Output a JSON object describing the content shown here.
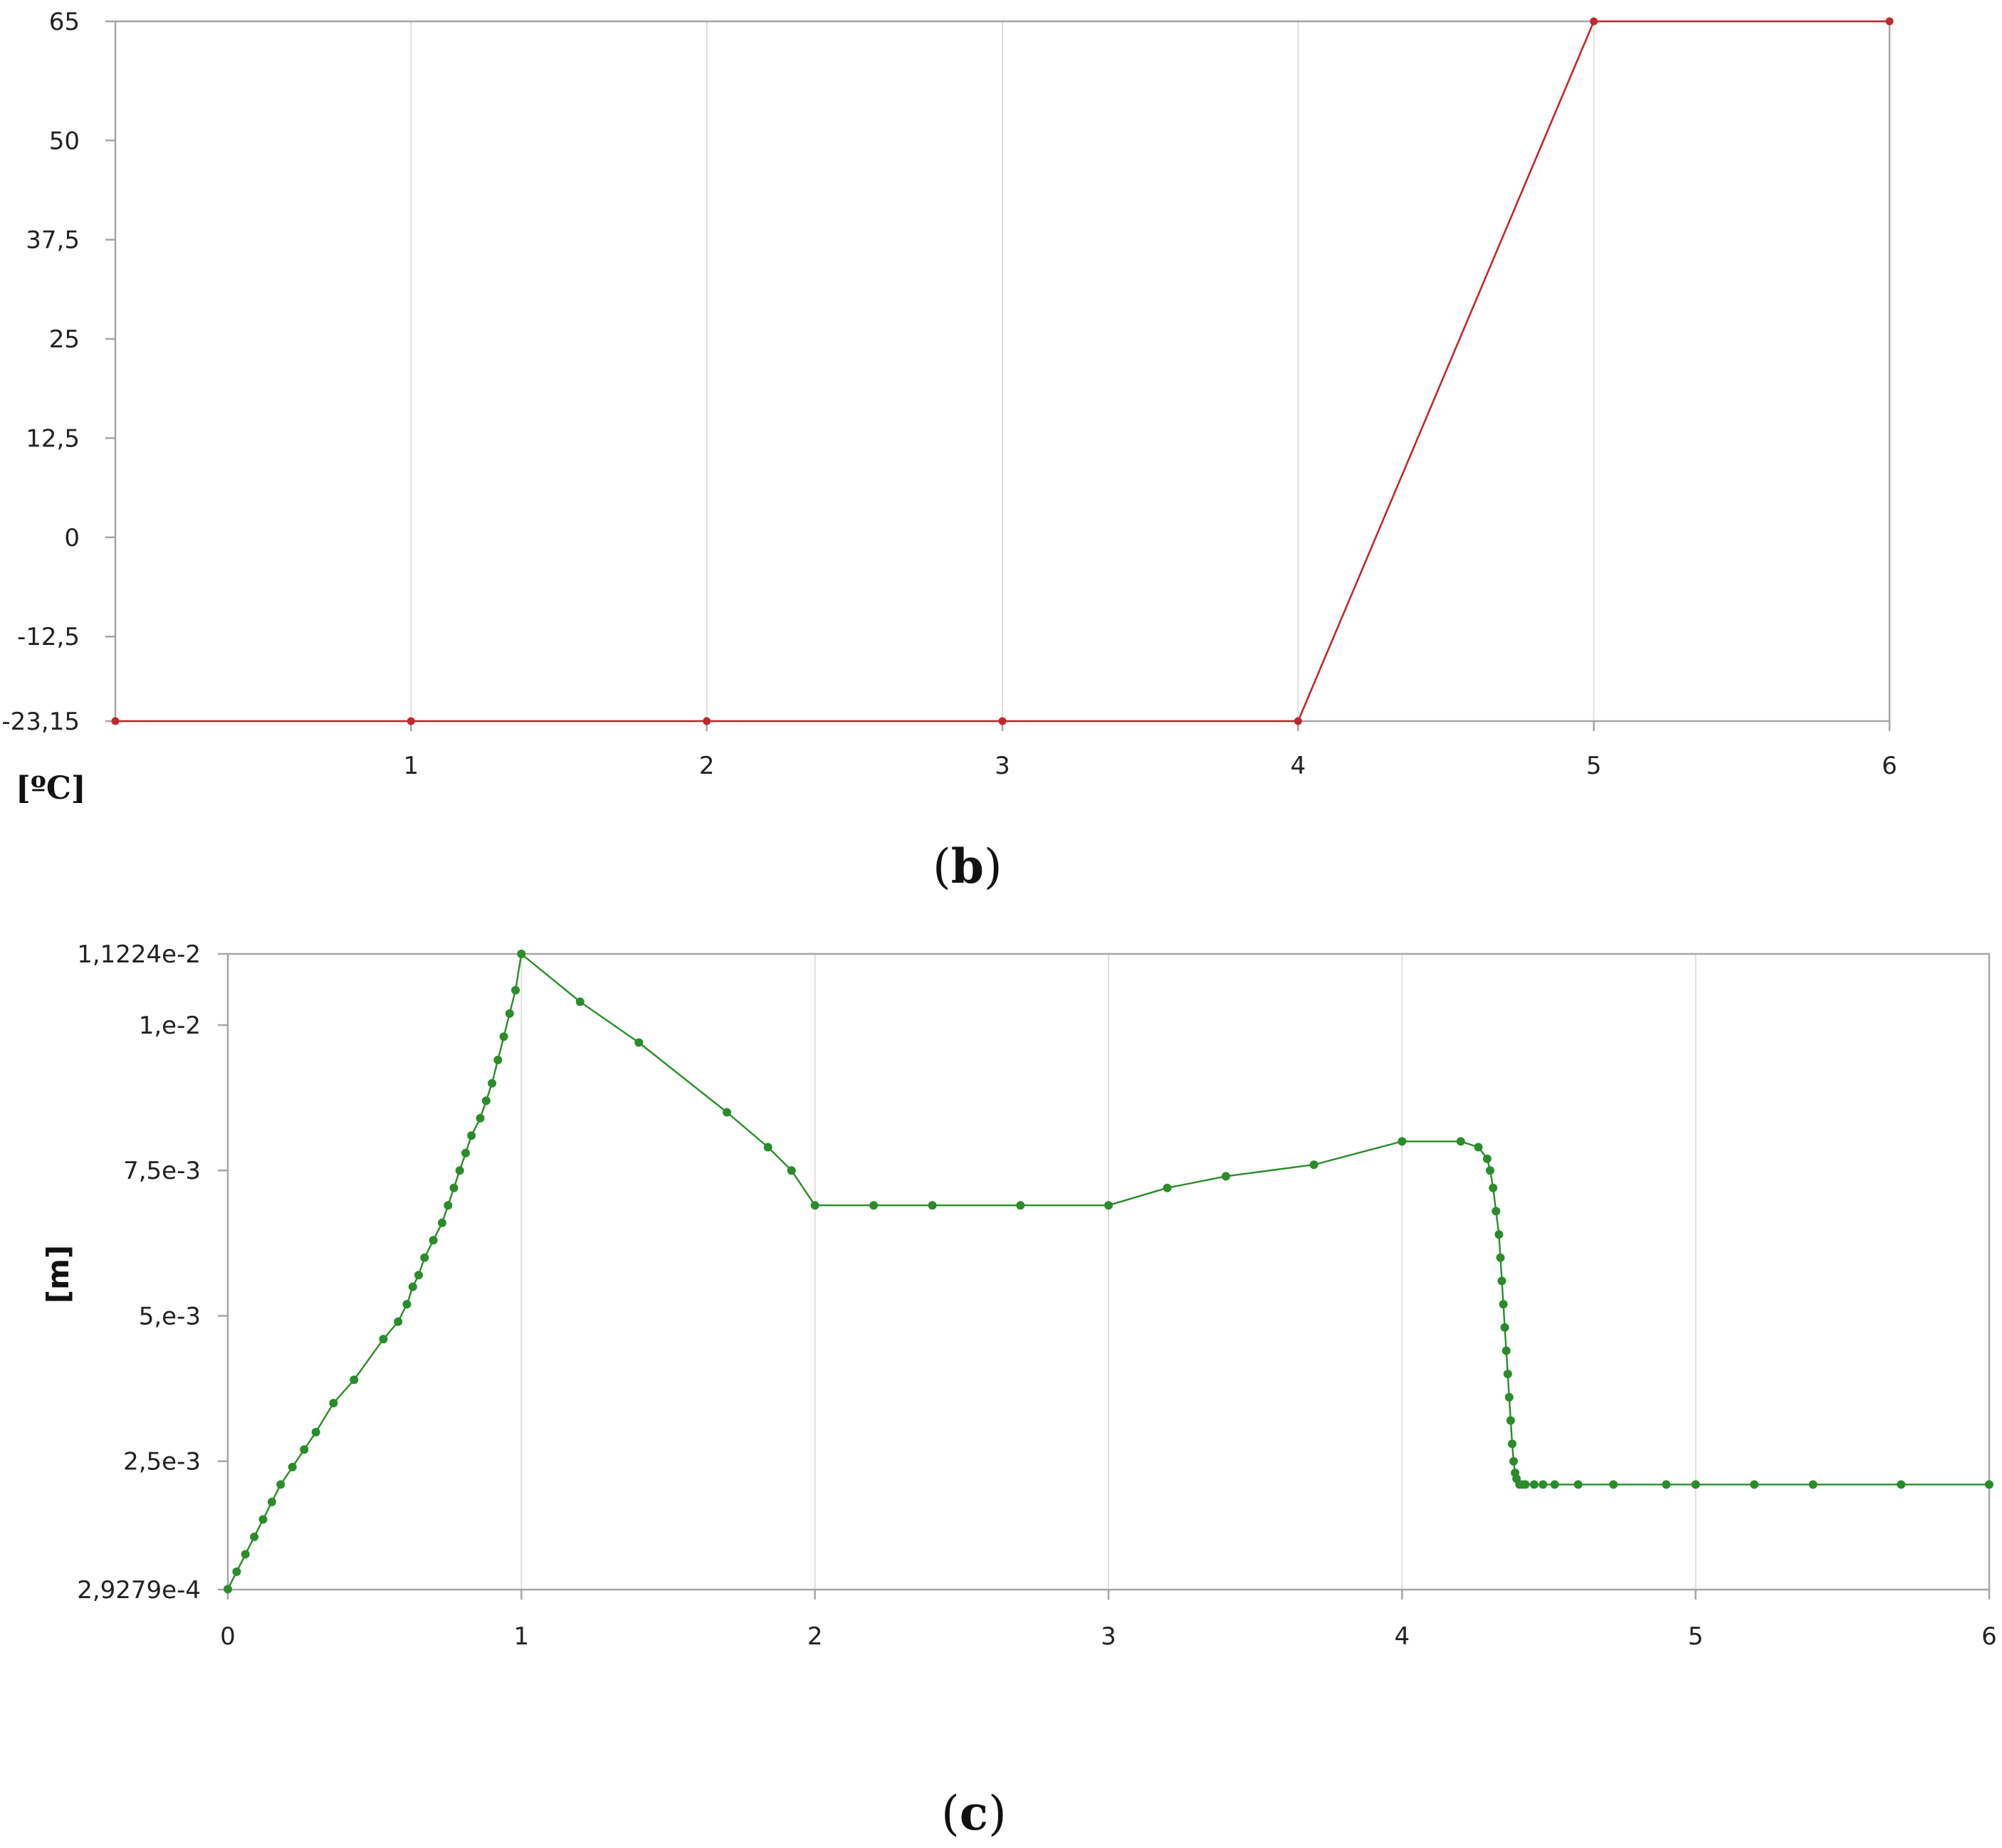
{
  "chart_data": [
    {
      "id": "b",
      "type": "line",
      "panel_label": "b",
      "unit_label": "[ºC]",
      "x_tick_labels": [
        "1",
        "2",
        "3",
        "4",
        "5",
        "6"
      ],
      "x_ticks": [
        1,
        2,
        3,
        4,
        5,
        6
      ],
      "xlim": [
        0,
        6
      ],
      "y_tick_labels": [
        "65",
        "50",
        "37,5",
        "25",
        "12,5",
        "0",
        "-12,5",
        "-23,15"
      ],
      "y_ticks": [
        65,
        50,
        37.5,
        25,
        12.5,
        0,
        -12.5,
        -23.15
      ],
      "ylim": [
        -23.15,
        65
      ],
      "grid": true,
      "series": [
        {
          "color": "#c0282d",
          "x": [
            0,
            1,
            2,
            3,
            4,
            5,
            6
          ],
          "y": [
            -23.15,
            -23.15,
            -23.15,
            -23.15,
            -23.15,
            65,
            65
          ]
        }
      ]
    },
    {
      "id": "c",
      "type": "line",
      "panel_label": "c",
      "unit_label": "[m]",
      "x_tick_labels": [
        "0",
        "1",
        "2",
        "3",
        "4",
        "5",
        "6"
      ],
      "x_ticks": [
        0,
        1,
        2,
        3,
        4,
        5,
        6
      ],
      "xlim": [
        0,
        6
      ],
      "y_tick_labels": [
        "1,1224e-2",
        "1,e-2",
        "7,5e-3",
        "5,e-3",
        "2,5e-3",
        "2,9279e-4"
      ],
      "y_ticks": [
        0.011224,
        0.01,
        0.0075,
        0.005,
        0.0025,
        0.00029279
      ],
      "ylim": [
        0.00029279,
        0.011224
      ],
      "grid": true,
      "series": [
        {
          "color": "#2a8c2a",
          "x": [
            0,
            0.03,
            0.06,
            0.09,
            0.12,
            0.15,
            0.18,
            0.22,
            0.26,
            0.3,
            0.36,
            0.43,
            0.53,
            0.58,
            0.61,
            0.63,
            0.65,
            0.67,
            0.7,
            0.73,
            0.75,
            0.77,
            0.79,
            0.81,
            0.83,
            0.86,
            0.88,
            0.9,
            0.92,
            0.94,
            0.96,
            0.98,
            1.0,
            1.2,
            1.4,
            1.7,
            1.84,
            1.92,
            2.0,
            2.2,
            2.4,
            2.7,
            3.0,
            3.2,
            3.4,
            3.7,
            4.0,
            4.2,
            4.26,
            4.29,
            4.3,
            4.31,
            4.32,
            4.33,
            4.335,
            4.34,
            4.345,
            4.35,
            4.355,
            4.36,
            4.365,
            4.37,
            4.375,
            4.38,
            4.385,
            4.39,
            4.4,
            4.41,
            4.42,
            4.45,
            4.48,
            4.52,
            4.6,
            4.72,
            4.9,
            5.0,
            5.2,
            5.4,
            5.7,
            6.0
          ],
          "y": [
            0.0003,
            0.0006,
            0.0009,
            0.0012,
            0.0015,
            0.0018,
            0.0021,
            0.0024,
            0.0027,
            0.003,
            0.0035,
            0.0039,
            0.0046,
            0.0049,
            0.0052,
            0.0055,
            0.0057,
            0.006,
            0.0063,
            0.0066,
            0.0069,
            0.0072,
            0.0075,
            0.0078,
            0.0081,
            0.0084,
            0.0087,
            0.009,
            0.0094,
            0.0098,
            0.0102,
            0.0106,
            0.011224,
            0.0104,
            0.0097,
            0.0085,
            0.0079,
            0.0075,
            0.0069,
            0.0069,
            0.0069,
            0.0069,
            0.0069,
            0.0072,
            0.0074,
            0.0076,
            0.008,
            0.008,
            0.0079,
            0.0077,
            0.0075,
            0.0072,
            0.0068,
            0.0064,
            0.006,
            0.0056,
            0.0052,
            0.0048,
            0.0044,
            0.004,
            0.0036,
            0.0032,
            0.0028,
            0.0025,
            0.0023,
            0.0022,
            0.0021,
            0.0021,
            0.0021,
            0.0021,
            0.0021,
            0.0021,
            0.0021,
            0.0021,
            0.0021,
            0.0021,
            0.0021,
            0.0021,
            0.0021,
            0.0021
          ]
        }
      ]
    }
  ]
}
